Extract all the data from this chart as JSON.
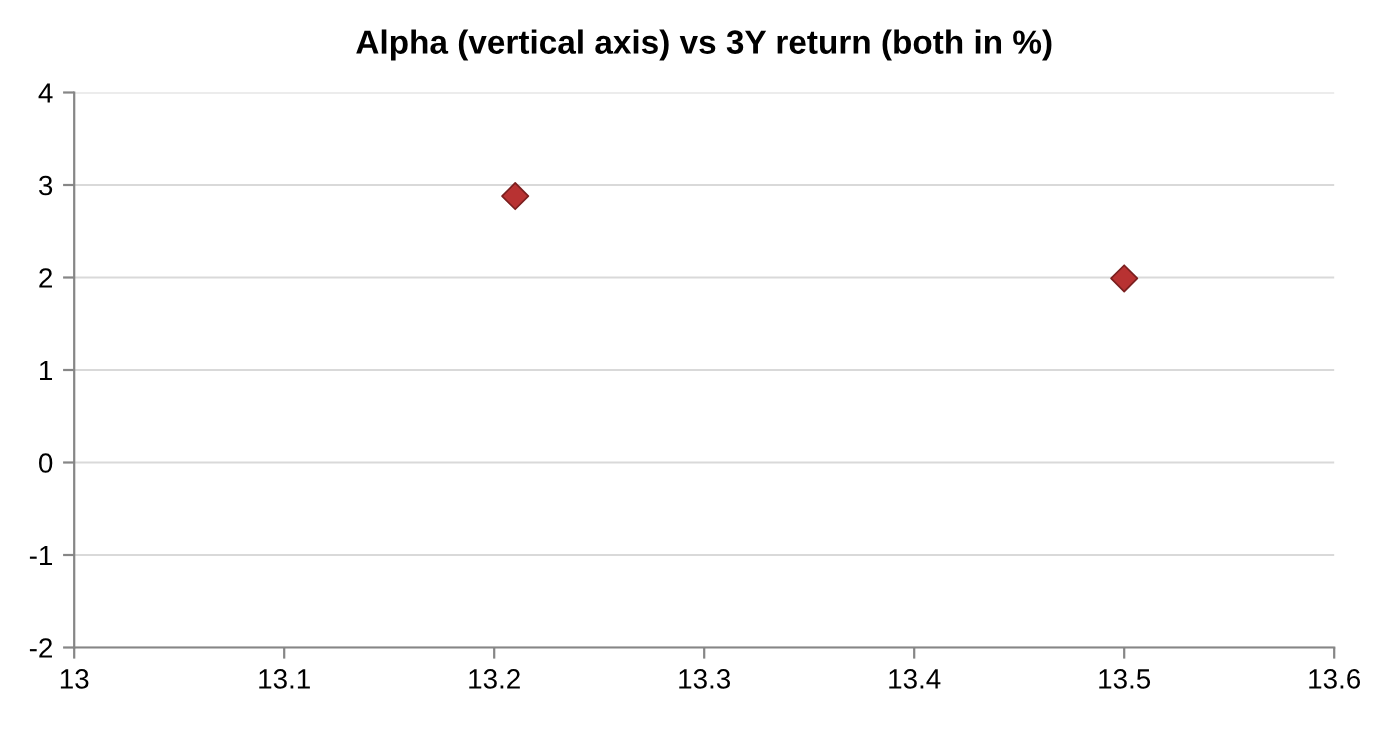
{
  "chart_data": {
    "type": "scatter",
    "title": "Alpha (vertical axis) vs 3Y return (both in %)",
    "x": [
      13.21,
      13.5
    ],
    "series": [
      {
        "color": "#b83232",
        "values": [
          2.88,
          1.99
        ]
      }
    ],
    "xlim": [
      13,
      13.6
    ],
    "xticks": [
      {
        "value": 13,
        "label": "13"
      },
      13.1,
      13.2,
      13.3,
      13.4,
      13.5,
      13.6
    ],
    "ylim": [
      -2,
      4
    ],
    "yticks": [
      -2,
      -1,
      0,
      1,
      2,
      3,
      4
    ],
    "grid": "y",
    "marker": "diamond",
    "legend": false
  }
}
